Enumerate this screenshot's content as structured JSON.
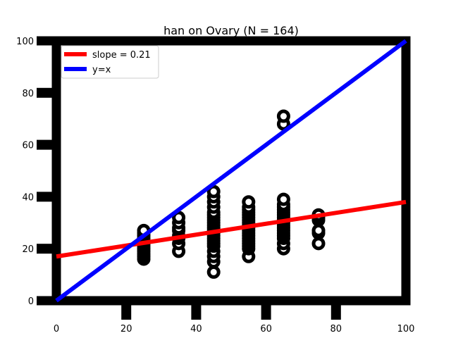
{
  "chart_data": {
    "type": "scatter",
    "title": "han on Ovary (N = 164)",
    "xlabel": "",
    "ylabel": "",
    "xlim": [
      0,
      100
    ],
    "ylim": [
      0,
      100
    ],
    "x_ticks": [
      0,
      20,
      40,
      60,
      80,
      100
    ],
    "y_ticks": [
      0,
      20,
      40,
      60,
      80,
      100
    ],
    "grid": false,
    "legend_position": "top-left",
    "colors": {
      "points": "#000000",
      "fit_line": "#ff0000",
      "identity_line": "#0000ff"
    },
    "lines": [
      {
        "name": "slope = 0.21",
        "x": [
          0,
          100
        ],
        "y": [
          17,
          38
        ],
        "color": "#ff0000"
      },
      {
        "name": "y=x",
        "x": [
          0,
          100
        ],
        "y": [
          0,
          100
        ],
        "color": "#0000ff"
      }
    ],
    "points": [
      {
        "x": 25,
        "y": 16
      },
      {
        "x": 25,
        "y": 17
      },
      {
        "x": 25,
        "y": 18
      },
      {
        "x": 25,
        "y": 19
      },
      {
        "x": 25,
        "y": 20
      },
      {
        "x": 25,
        "y": 21
      },
      {
        "x": 25,
        "y": 22
      },
      {
        "x": 25,
        "y": 23
      },
      {
        "x": 25,
        "y": 24
      },
      {
        "x": 25,
        "y": 25
      },
      {
        "x": 25,
        "y": 26
      },
      {
        "x": 25,
        "y": 27
      },
      {
        "x": 35,
        "y": 19
      },
      {
        "x": 35,
        "y": 22
      },
      {
        "x": 35,
        "y": 24
      },
      {
        "x": 35,
        "y": 25
      },
      {
        "x": 35,
        "y": 27
      },
      {
        "x": 35,
        "y": 28
      },
      {
        "x": 35,
        "y": 30
      },
      {
        "x": 35,
        "y": 32
      },
      {
        "x": 45,
        "y": 11
      },
      {
        "x": 45,
        "y": 15
      },
      {
        "x": 45,
        "y": 17
      },
      {
        "x": 45,
        "y": 19
      },
      {
        "x": 45,
        "y": 21
      },
      {
        "x": 45,
        "y": 22
      },
      {
        "x": 45,
        "y": 23
      },
      {
        "x": 45,
        "y": 24
      },
      {
        "x": 45,
        "y": 25
      },
      {
        "x": 45,
        "y": 26
      },
      {
        "x": 45,
        "y": 27
      },
      {
        "x": 45,
        "y": 28
      },
      {
        "x": 45,
        "y": 29
      },
      {
        "x": 45,
        "y": 30
      },
      {
        "x": 45,
        "y": 31
      },
      {
        "x": 45,
        "y": 32
      },
      {
        "x": 45,
        "y": 33
      },
      {
        "x": 45,
        "y": 34
      },
      {
        "x": 45,
        "y": 36
      },
      {
        "x": 45,
        "y": 38
      },
      {
        "x": 45,
        "y": 40
      },
      {
        "x": 45,
        "y": 42
      },
      {
        "x": 55,
        "y": 17
      },
      {
        "x": 55,
        "y": 20
      },
      {
        "x": 55,
        "y": 21
      },
      {
        "x": 55,
        "y": 22
      },
      {
        "x": 55,
        "y": 23
      },
      {
        "x": 55,
        "y": 24
      },
      {
        "x": 55,
        "y": 25
      },
      {
        "x": 55,
        "y": 26
      },
      {
        "x": 55,
        "y": 27
      },
      {
        "x": 55,
        "y": 28
      },
      {
        "x": 55,
        "y": 29
      },
      {
        "x": 55,
        "y": 30
      },
      {
        "x": 55,
        "y": 31
      },
      {
        "x": 55,
        "y": 32
      },
      {
        "x": 55,
        "y": 33
      },
      {
        "x": 55,
        "y": 34
      },
      {
        "x": 55,
        "y": 35
      },
      {
        "x": 55,
        "y": 36
      },
      {
        "x": 55,
        "y": 38
      },
      {
        "x": 65,
        "y": 20
      },
      {
        "x": 65,
        "y": 22
      },
      {
        "x": 65,
        "y": 24
      },
      {
        "x": 65,
        "y": 25
      },
      {
        "x": 65,
        "y": 26
      },
      {
        "x": 65,
        "y": 27
      },
      {
        "x": 65,
        "y": 28
      },
      {
        "x": 65,
        "y": 29
      },
      {
        "x": 65,
        "y": 30
      },
      {
        "x": 65,
        "y": 31
      },
      {
        "x": 65,
        "y": 32
      },
      {
        "x": 65,
        "y": 33
      },
      {
        "x": 65,
        "y": 34
      },
      {
        "x": 65,
        "y": 35
      },
      {
        "x": 65,
        "y": 36
      },
      {
        "x": 65,
        "y": 37
      },
      {
        "x": 65,
        "y": 39
      },
      {
        "x": 65,
        "y": 68
      },
      {
        "x": 65,
        "y": 71
      },
      {
        "x": 75,
        "y": 22
      },
      {
        "x": 75,
        "y": 26
      },
      {
        "x": 75,
        "y": 27
      },
      {
        "x": 75,
        "y": 31
      },
      {
        "x": 75,
        "y": 32
      },
      {
        "x": 75,
        "y": 33
      }
    ]
  }
}
